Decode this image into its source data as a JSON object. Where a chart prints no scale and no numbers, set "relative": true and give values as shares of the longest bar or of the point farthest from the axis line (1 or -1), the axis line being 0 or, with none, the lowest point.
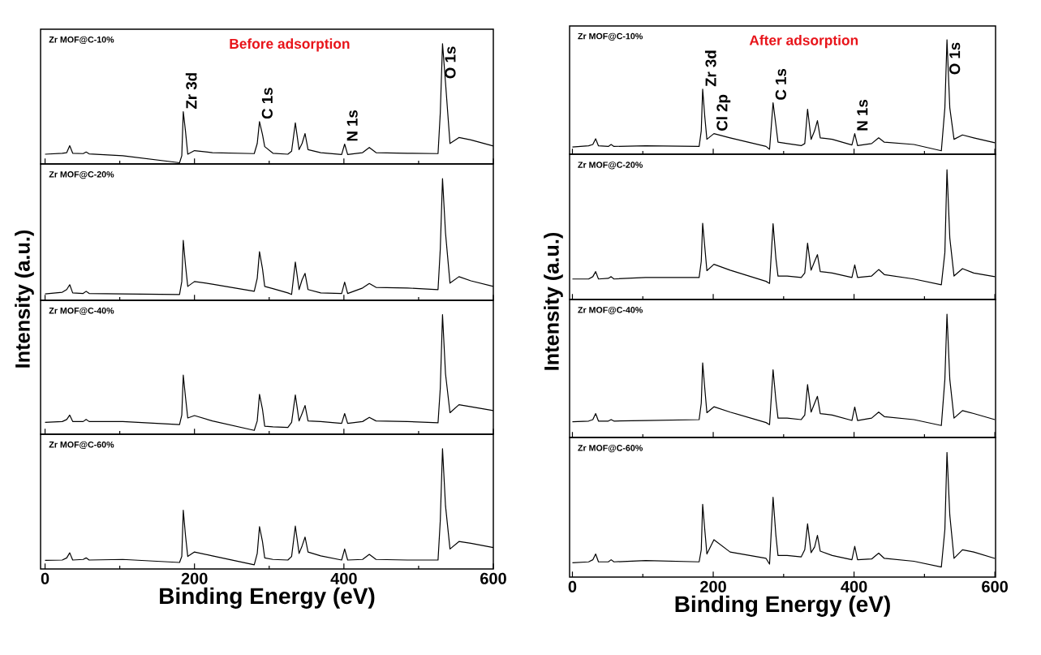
{
  "chart_data": [
    {
      "type": "line",
      "title": "Before adsorption",
      "ylabel": "Intensity (a.u.)",
      "relative": true,
      "xlim": [
        -6,
        600
      ],
      "xticks": [
        0,
        200,
        400,
        600
      ],
      "tick_labels": false,
      "x": [
        0,
        23,
        29,
        33,
        37,
        51,
        55,
        59,
        104,
        180,
        183,
        185,
        188,
        191,
        200,
        224,
        280,
        284,
        287,
        291,
        294,
        305,
        325,
        330,
        335,
        340,
        344,
        348,
        352,
        369,
        397,
        401,
        405,
        425,
        434,
        443,
        485,
        526,
        529,
        532,
        536,
        542,
        554,
        570,
        600
      ],
      "series": [
        {
          "name": "Zr MOF@C-10%",
          "color": "#000000",
          "values": [
            0.081,
            0.089,
            0.094,
            0.152,
            0.089,
            0.086,
            0.099,
            0.084,
            0.068,
            0.01,
            0.068,
            0.435,
            0.271,
            0.081,
            0.111,
            0.094,
            0.086,
            0.17,
            0.352,
            0.246,
            0.144,
            0.089,
            0.081,
            0.106,
            0.342,
            0.119,
            0.17,
            0.253,
            0.119,
            0.094,
            0.078,
            0.165,
            0.078,
            0.094,
            0.137,
            0.094,
            0.089,
            0.086,
            0.423,
            1,
            0.676,
            0.17,
            0.22,
            0.2,
            0.149
          ]
        }
      ],
      "annotations": [
        {
          "text": "Zr 3d",
          "x": 185,
          "y": 0.435
        },
        {
          "text": "C 1s",
          "x": 287,
          "y": 0.352
        },
        {
          "text": "N 1s",
          "x": 401,
          "y": 0.165
        },
        {
          "text": "O 1s",
          "x": 532,
          "y": 1
        }
      ]
    },
    {
      "type": "line",
      "relative": true,
      "xlim": [
        -6,
        600
      ],
      "xticks": [
        0,
        200,
        400,
        600
      ],
      "tick_labels": false,
      "x": [
        0,
        23,
        29,
        33,
        37,
        51,
        55,
        59,
        104,
        180,
        183,
        185,
        188,
        191,
        200,
        224,
        280,
        284,
        287,
        291,
        294,
        305,
        325,
        330,
        335,
        340,
        344,
        348,
        352,
        369,
        397,
        401,
        405,
        425,
        434,
        443,
        485,
        526,
        529,
        532,
        536,
        542,
        554,
        570,
        600
      ],
      "series": [
        {
          "name": "Zr MOF@C-20%",
          "color": "#000000",
          "values": [
            0.053,
            0.066,
            0.088,
            0.128,
            0.061,
            0.056,
            0.074,
            0.056,
            0.053,
            0.048,
            0.154,
            0.492,
            0.287,
            0.114,
            0.154,
            0.133,
            0.074,
            0.181,
            0.399,
            0.261,
            0.114,
            0.096,
            0.061,
            0.048,
            0.314,
            0.088,
            0.168,
            0.221,
            0.088,
            0.061,
            0.056,
            0.149,
            0.056,
            0.101,
            0.138,
            0.106,
            0.101,
            0.088,
            0.42,
            1,
            0.553,
            0.141,
            0.194,
            0.16,
            0.114
          ]
        }
      ]
    },
    {
      "type": "line",
      "relative": true,
      "xlim": [
        -6,
        600
      ],
      "xticks": [
        0,
        200,
        400,
        600
      ],
      "tick_labels": false,
      "x": [
        0,
        23,
        29,
        33,
        37,
        51,
        55,
        59,
        104,
        180,
        183,
        185,
        188,
        191,
        200,
        224,
        280,
        284,
        287,
        291,
        294,
        305,
        325,
        330,
        335,
        340,
        344,
        348,
        352,
        369,
        397,
        401,
        405,
        425,
        434,
        443,
        485,
        526,
        529,
        532,
        536,
        542,
        554,
        570,
        600
      ],
      "series": [
        {
          "name": "Zr MOF@C-40%",
          "color": "#000000",
          "values": [
            0.099,
            0.106,
            0.123,
            0.16,
            0.106,
            0.106,
            0.123,
            0.106,
            0.106,
            0.081,
            0.16,
            0.494,
            0.309,
            0.136,
            0.156,
            0.111,
            0.032,
            0.111,
            0.333,
            0.21,
            0.067,
            0.062,
            0.057,
            0.099,
            0.328,
            0.111,
            0.173,
            0.24,
            0.111,
            0.106,
            0.091,
            0.173,
            0.091,
            0.106,
            0.141,
            0.111,
            0.106,
            0.096,
            0.383,
            1,
            0.506,
            0.18,
            0.247,
            0.23,
            0.198
          ]
        }
      ]
    },
    {
      "type": "line",
      "xlabel": "Binding Energy (eV)",
      "relative": true,
      "xlim": [
        -6,
        600
      ],
      "xticks": [
        0,
        200,
        400,
        600
      ],
      "tick_labels": "x",
      "x": [
        0,
        23,
        29,
        33,
        37,
        51,
        55,
        59,
        104,
        180,
        183,
        185,
        188,
        191,
        200,
        224,
        280,
        284,
        287,
        291,
        294,
        305,
        325,
        330,
        335,
        340,
        344,
        348,
        352,
        369,
        397,
        401,
        405,
        425,
        434,
        443,
        485,
        526,
        529,
        532,
        536,
        542,
        554,
        570,
        600
      ],
      "series": [
        {
          "name": "Zr MOF@C-60%",
          "color": "#000000",
          "values": [
            0.072,
            0.074,
            0.092,
            0.134,
            0.074,
            0.079,
            0.092,
            0.074,
            0.079,
            0.054,
            0.104,
            0.488,
            0.277,
            0.104,
            0.141,
            0.109,
            0.035,
            0.129,
            0.351,
            0.228,
            0.092,
            0.079,
            0.074,
            0.104,
            0.356,
            0.129,
            0.191,
            0.265,
            0.141,
            0.109,
            0.074,
            0.166,
            0.074,
            0.079,
            0.121,
            0.079,
            0.074,
            0.074,
            0.401,
            1,
            0.525,
            0.166,
            0.228,
            0.213,
            0.178
          ]
        }
      ]
    },
    {
      "type": "line",
      "title": "After adsorption",
      "ylabel": "Intensity (a.u.)",
      "relative": true,
      "xlim": [
        -4,
        601
      ],
      "xticks": [
        0,
        200,
        400,
        600
      ],
      "tick_labels": false,
      "x": [
        0,
        23,
        29,
        33,
        37,
        51,
        55,
        59,
        104,
        180,
        183,
        185,
        188,
        191,
        201,
        224,
        275,
        280,
        285,
        289,
        292,
        305,
        325,
        330,
        334,
        339,
        344,
        348,
        352,
        369,
        397,
        401,
        405,
        425,
        435,
        443,
        485,
        524,
        529,
        532,
        536,
        542,
        554,
        570,
        600
      ],
      "series": [
        {
          "name": "Zr MOF@C-10%",
          "color": "#000000",
          "values": [
            0.063,
            0.073,
            0.085,
            0.135,
            0.073,
            0.068,
            0.085,
            0.068,
            0.073,
            0.068,
            0.205,
            0.568,
            0.33,
            0.13,
            0.18,
            0.143,
            0.068,
            0.043,
            0.45,
            0.255,
            0.105,
            0.093,
            0.075,
            0.093,
            0.393,
            0.13,
            0.205,
            0.293,
            0.143,
            0.13,
            0.08,
            0.18,
            0.075,
            0.093,
            0.143,
            0.105,
            0.085,
            0.03,
            0.405,
            1,
            0.405,
            0.13,
            0.168,
            0.143,
            0.1
          ]
        }
      ],
      "annotations": [
        {
          "text": "Zr 3d",
          "x": 185,
          "y": 0.568
        },
        {
          "text": "Cl 2p",
          "x": 201,
          "y": 0.18
        },
        {
          "text": "C 1s",
          "x": 285,
          "y": 0.45
        },
        {
          "text": "N 1s",
          "x": 401,
          "y": 0.18
        },
        {
          "text": "O 1s",
          "x": 532,
          "y": 1
        }
      ]
    },
    {
      "type": "line",
      "relative": true,
      "xlim": [
        -4,
        601
      ],
      "xticks": [
        0,
        200,
        400,
        600
      ],
      "tick_labels": false,
      "x": [
        0,
        23,
        29,
        33,
        37,
        51,
        55,
        59,
        104,
        180,
        183,
        185,
        188,
        191,
        201,
        224,
        275,
        280,
        285,
        289,
        292,
        305,
        325,
        330,
        334,
        339,
        344,
        348,
        352,
        369,
        397,
        401,
        405,
        425,
        435,
        443,
        485,
        524,
        529,
        532,
        536,
        542,
        554,
        570,
        600
      ],
      "series": [
        {
          "name": "Zr MOF@C-20%",
          "color": "#000000",
          "values": [
            0.158,
            0.158,
            0.176,
            0.215,
            0.158,
            0.163,
            0.176,
            0.158,
            0.17,
            0.17,
            0.294,
            0.588,
            0.407,
            0.222,
            0.271,
            0.226,
            0.14,
            0.124,
            0.584,
            0.317,
            0.181,
            0.181,
            0.17,
            0.204,
            0.434,
            0.226,
            0.294,
            0.346,
            0.215,
            0.204,
            0.17,
            0.267,
            0.17,
            0.181,
            0.231,
            0.192,
            0.158,
            0.113,
            0.362,
            1,
            0.475,
            0.181,
            0.238,
            0.204,
            0.176
          ]
        }
      ]
    },
    {
      "type": "line",
      "relative": true,
      "xlim": [
        -4,
        601
      ],
      "xticks": [
        0,
        200,
        400,
        600
      ],
      "tick_labels": false,
      "x": [
        0,
        23,
        29,
        33,
        37,
        51,
        55,
        59,
        104,
        180,
        183,
        185,
        188,
        191,
        201,
        224,
        275,
        280,
        285,
        289,
        292,
        305,
        325,
        330,
        334,
        339,
        344,
        348,
        352,
        369,
        397,
        401,
        405,
        425,
        435,
        443,
        485,
        524,
        529,
        532,
        536,
        542,
        554,
        570,
        600
      ],
      "series": [
        {
          "name": "Zr MOF@C-40%",
          "color": "#000000",
          "values": [
            0.128,
            0.133,
            0.145,
            0.194,
            0.133,
            0.133,
            0.145,
            0.133,
            0.138,
            0.145,
            0.278,
            0.605,
            0.4,
            0.201,
            0.249,
            0.206,
            0.121,
            0.104,
            0.55,
            0.303,
            0.157,
            0.157,
            0.145,
            0.182,
            0.429,
            0.206,
            0.278,
            0.334,
            0.194,
            0.182,
            0.138,
            0.247,
            0.138,
            0.157,
            0.206,
            0.169,
            0.145,
            0.097,
            0.472,
            1,
            0.472,
            0.157,
            0.218,
            0.194,
            0.145
          ]
        }
      ]
    },
    {
      "type": "line",
      "xlabel": "Binding Energy (eV)",
      "relative": true,
      "xlim": [
        -4,
        601
      ],
      "xticks": [
        0,
        200,
        400,
        600
      ],
      "tick_labels": "x",
      "x": [
        0,
        23,
        29,
        33,
        37,
        51,
        55,
        59,
        104,
        180,
        183,
        185,
        188,
        191,
        201,
        224,
        275,
        280,
        285,
        289,
        292,
        305,
        325,
        330,
        334,
        339,
        344,
        348,
        352,
        369,
        397,
        401,
        405,
        425,
        435,
        443,
        485,
        524,
        529,
        532,
        536,
        542,
        554,
        570,
        600
      ],
      "series": [
        {
          "name": "Zr MOF@C-60%",
          "color": "#000000",
          "values": [
            0.115,
            0.122,
            0.139,
            0.185,
            0.122,
            0.122,
            0.139,
            0.122,
            0.132,
            0.122,
            0.219,
            0.584,
            0.381,
            0.185,
            0.3,
            0.201,
            0.15,
            0.104,
            0.64,
            0.335,
            0.173,
            0.173,
            0.162,
            0.219,
            0.427,
            0.196,
            0.242,
            0.335,
            0.208,
            0.173,
            0.139,
            0.247,
            0.139,
            0.145,
            0.192,
            0.15,
            0.127,
            0.081,
            0.381,
            1,
            0.497,
            0.15,
            0.219,
            0.201,
            0.15
          ]
        }
      ]
    }
  ]
}
